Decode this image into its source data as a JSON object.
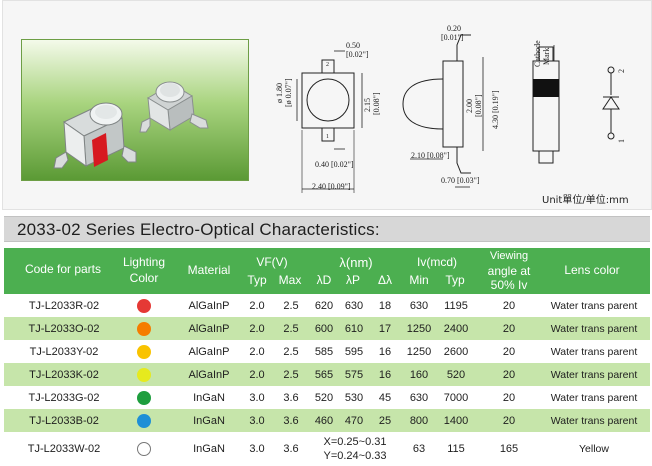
{
  "drawing": {
    "dims": {
      "w050": "0.50",
      "w050b": "[0.02\"]",
      "dia": "ø 1.80",
      "diab": "[ø 0.07\"]",
      "h215": "2.15",
      "h215b": "[0.08\"]",
      "w040": "0.40 [0.02\"]",
      "w240": "2.40 [0.09\"]",
      "t020": "0.20",
      "t020b": "[0.01\"]",
      "h200": "2.00",
      "h200b": "[0.08\"]",
      "h430": "4.30 [0.19\"]",
      "l210": "2.10 [0.08\"]",
      "w070": "0.70 [0.03\"]",
      "cathode1": "Cathode",
      "cathode2": "Mark",
      "pin1": "1",
      "pin2": "2",
      "pin1b": "1",
      "pin2b": "2"
    },
    "unit_note": "Unit單位/单位:mm"
  },
  "section_title": "2033-02  Series Electro-Optical Characteristics:",
  "table": {
    "headers": {
      "code": "Code for parts",
      "lighting1": "Lighting",
      "lighting2": "Color",
      "material": "Material",
      "vf": "VF(V)",
      "vf_typ": "Typ",
      "vf_max": "Max",
      "lambda": "λ(nm)",
      "ld": "λD",
      "lp": "λP",
      "dl": "Δλ",
      "iv": "Iv(mcd)",
      "iv_min": "Min",
      "iv_typ": "Typ",
      "view1": "Viewing",
      "view2": "angle at",
      "view3": "50% Iv",
      "lens": "Lens color"
    },
    "rows": [
      {
        "code": "TJ-L2033R-02",
        "dot": "#e53935",
        "material": "AlGaInP",
        "vf_typ": "2.0",
        "vf_max": "2.5",
        "ld": "620",
        "lp": "630",
        "dl": "18",
        "iv_min": "630",
        "iv_typ": "1195",
        "view": "20",
        "lens": "Water trans parent"
      },
      {
        "code": "TJ-L2033O-02",
        "dot": "#f57c00",
        "material": "AlGaInP",
        "vf_typ": "2.0",
        "vf_max": "2.5",
        "ld": "600",
        "lp": "610",
        "dl": "17",
        "iv_min": "1250",
        "iv_typ": "2400",
        "view": "20",
        "lens": "Water trans parent"
      },
      {
        "code": "TJ-L2033Y-02",
        "dot": "#f9c300",
        "material": "AlGaInP",
        "vf_typ": "2.0",
        "vf_max": "2.5",
        "ld": "585",
        "lp": "595",
        "dl": "16",
        "iv_min": "1250",
        "iv_typ": "2600",
        "view": "20",
        "lens": "Water trans parent"
      },
      {
        "code": "TJ-L2033K-02",
        "dot": "#e6ea1e",
        "material": "AlGaInP",
        "vf_typ": "2.0",
        "vf_max": "2.5",
        "ld": "565",
        "lp": "575",
        "dl": "16",
        "iv_min": "160",
        "iv_typ": "520",
        "view": "20",
        "lens": "Water trans parent"
      },
      {
        "code": "TJ-L2033G-02",
        "dot": "#1e9e3e",
        "material": "InGaN",
        "vf_typ": "3.0",
        "vf_max": "3.6",
        "ld": "520",
        "lp": "530",
        "dl": "45",
        "iv_min": "630",
        "iv_typ": "7000",
        "view": "20",
        "lens": "Water trans parent"
      },
      {
        "code": "TJ-L2033B-02",
        "dot": "#1e8fd6",
        "material": "InGaN",
        "vf_typ": "3.0",
        "vf_max": "3.6",
        "ld": "460",
        "lp": "470",
        "dl": "25",
        "iv_min": "800",
        "iv_typ": "1400",
        "view": "20",
        "lens": "Water trans parent"
      }
    ],
    "last_row": {
      "code": "TJ-L2033W-02",
      "dot": "#ffffff",
      "material": "InGaN",
      "vf_typ": "3.0",
      "vf_max": "3.6",
      "xy1": "X=0.25~0.31",
      "xy2": "Y=0.24~0.33",
      "iv_min": "63",
      "iv_typ": "115",
      "view": "165",
      "lens": "Yellow"
    }
  }
}
